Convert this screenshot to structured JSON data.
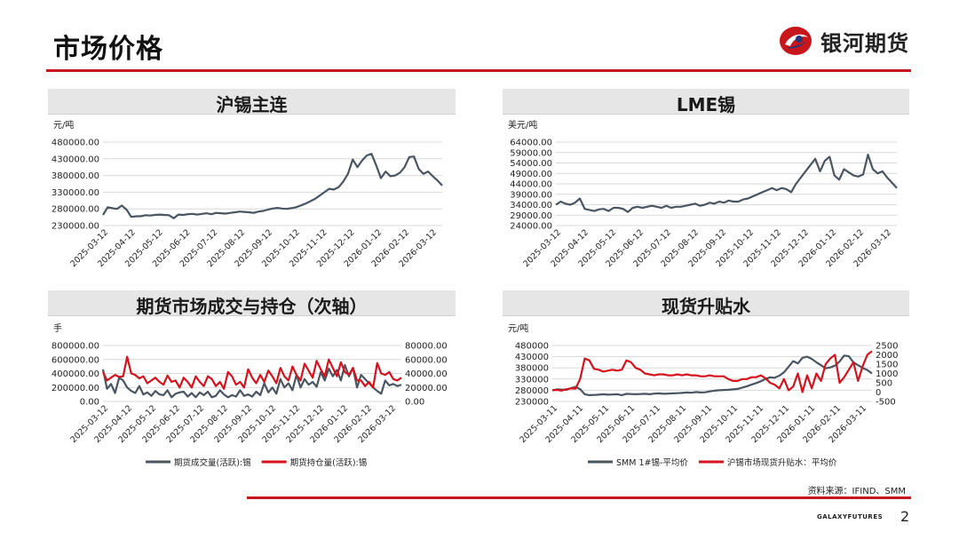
{
  "page": {
    "title": "市场价格",
    "brand": "银河期货",
    "source": "资料来源：IFIND、SMM",
    "footer_brand": "GALAXYFUTURES",
    "page_number": "2"
  },
  "colors": {
    "accent": "#c8161d",
    "series_gray": "#4a5562",
    "series_red": "#d6121c",
    "title_bar": "#e6e6e6"
  },
  "chart_data": [
    {
      "id": "shfe",
      "type": "line",
      "title": "沪锡主连",
      "unit": "元/吨",
      "ylim": [
        230000,
        480000
      ],
      "yticks": [
        "480000.00",
        "430000.00",
        "380000.00",
        "330000.00",
        "280000.00",
        "230000.00"
      ],
      "ytick_values": [
        480000,
        430000,
        380000,
        330000,
        280000,
        230000
      ],
      "xlabels": [
        "2025-03-12",
        "2025-04-12",
        "2025-05-12",
        "2025-06-12",
        "2025-07-12",
        "2025-08-12",
        "2025-09-12",
        "2025-10-12",
        "2025-11-12",
        "2025-12-12",
        "2026-01-12",
        "2026-02-12",
        "2026-03-12"
      ],
      "grid": "horizontal",
      "series": [
        {
          "values": [
            262000,
            285000,
            282000,
            280000,
            290000,
            278000,
            256000,
            258000,
            258000,
            261000,
            260000,
            262000,
            263000,
            262000,
            261000,
            252000,
            263000,
            262000,
            264000,
            265000,
            263000,
            265000,
            267000,
            264000,
            268000,
            267000,
            266000,
            268000,
            270000,
            272000,
            271000,
            270000,
            268000,
            272000,
            274000,
            278000,
            281000,
            283000,
            281000,
            280000,
            282000,
            285000,
            290000,
            296000,
            303000,
            310000,
            320000,
            330000,
            340000,
            338000,
            345000,
            362000,
            385000,
            428000,
            405000,
            425000,
            440000,
            445000,
            410000,
            372000,
            392000,
            378000,
            380000,
            388000,
            405000,
            435000,
            437000,
            400000,
            385000,
            392000,
            378000,
            365000,
            350000
          ]
        }
      ]
    },
    {
      "id": "lme",
      "type": "line",
      "title": "LME锡",
      "unit": "美元/吨",
      "ylim": [
        24000,
        64000
      ],
      "yticks": [
        "64000.00",
        "59000.00",
        "54000.00",
        "49000.00",
        "44000.00",
        "39000.00",
        "34000.00",
        "29000.00",
        "24000.00"
      ],
      "ytick_values": [
        64000,
        59000,
        54000,
        49000,
        44000,
        39000,
        34000,
        29000,
        24000
      ],
      "xlabels": [
        "2025-03-12",
        "2025-04-12",
        "2025-05-12",
        "2025-06-12",
        "2025-07-12",
        "2025-08-12",
        "2025-09-12",
        "2025-10-12",
        "2025-11-12",
        "2025-12-12",
        "2026-01-12",
        "2026-02-12",
        "2026-03-12"
      ],
      "grid": "horizontal",
      "series": [
        {
          "values": [
            34000,
            35500,
            34500,
            34000,
            35000,
            37000,
            32000,
            31500,
            31000,
            31800,
            32000,
            31000,
            32500,
            32500,
            32000,
            30500,
            32500,
            33000,
            32500,
            33000,
            33500,
            33000,
            32500,
            33500,
            32500,
            33000,
            33000,
            33500,
            34000,
            34500,
            33500,
            34000,
            35000,
            34500,
            35500,
            35000,
            36000,
            35500,
            35500,
            36500,
            37000,
            38000,
            39000,
            40000,
            41000,
            42000,
            41000,
            42000,
            41500,
            40000,
            44000,
            47000,
            50000,
            53000,
            56000,
            50000,
            55000,
            57000,
            48000,
            46000,
            51000,
            49500,
            48000,
            47500,
            48500,
            58000,
            51000,
            49000,
            50000,
            47000,
            44500,
            42000
          ]
        }
      ]
    },
    {
      "id": "volume",
      "type": "line",
      "title": "期货市场成交与持仓（次轴）",
      "unit": "手",
      "ylim": [
        0,
        800000
      ],
      "yticks": [
        "800000.00",
        "600000.00",
        "400000.00",
        "200000.00",
        "0.00"
      ],
      "ytick_values": [
        800000,
        600000,
        400000,
        200000,
        0
      ],
      "ylim_right": [
        0,
        80000
      ],
      "yticks_right": [
        "80000.00",
        "60000.00",
        "40000.00",
        "20000.00",
        "0.00"
      ],
      "ytick_values_right": [
        80000,
        60000,
        40000,
        20000,
        0
      ],
      "xlabels": [
        "2025-03-12",
        "2025-04-12",
        "2025-05-12",
        "2025-06-12",
        "2025-07-12",
        "2025-08-12",
        "2025-09-12",
        "2025-10-12",
        "2025-11-12",
        "2025-12-12",
        "2026-01-12",
        "2026-02-12",
        "2026-03-12"
      ],
      "grid": "horizontal",
      "legend": "bottom",
      "series": [
        {
          "name": "期货成交量(活跃):锡",
          "axis": "left",
          "values": [
            460000,
            180000,
            250000,
            120000,
            340000,
            300000,
            200000,
            150000,
            120000,
            220000,
            100000,
            130000,
            80000,
            150000,
            100000,
            90000,
            160000,
            60000,
            110000,
            130000,
            140000,
            70000,
            120000,
            60000,
            130000,
            90000,
            140000,
            60000,
            80000,
            160000,
            100000,
            60000,
            90000,
            70000,
            160000,
            80000,
            100000,
            70000,
            140000,
            90000,
            260000,
            130000,
            200000,
            110000,
            320000,
            200000,
            260000,
            160000,
            380000,
            200000,
            320000,
            240000,
            280000,
            210000,
            420000,
            300000,
            470000,
            360000,
            450000,
            300000,
            520000,
            360000,
            480000,
            200000,
            380000,
            320000,
            260000,
            200000,
            150000,
            110000,
            300000,
            230000,
            250000,
            220000,
            240000
          ]
        },
        {
          "name": "期货持仓量(活跃):锡",
          "axis": "right",
          "values": [
            42000,
            30000,
            34000,
            38000,
            35000,
            36000,
            64000,
            40000,
            38000,
            33000,
            36000,
            26000,
            30000,
            34000,
            28000,
            24000,
            37000,
            28000,
            30000,
            20000,
            34000,
            28000,
            20000,
            36000,
            28000,
            22000,
            36000,
            32000,
            22000,
            28000,
            18000,
            42000,
            36000,
            24000,
            28000,
            20000,
            46000,
            34000,
            26000,
            38000,
            28000,
            44000,
            36000,
            26000,
            48000,
            36000,
            30000,
            50000,
            38000,
            30000,
            54000,
            44000,
            34000,
            58000,
            46000,
            36000,
            60000,
            48000,
            36000,
            56000,
            42000,
            38000,
            48000,
            30000,
            30000,
            22000,
            28000,
            20000,
            55000,
            40000,
            38000,
            42000,
            32000,
            30000,
            34000
          ]
        }
      ]
    },
    {
      "id": "spot",
      "type": "line",
      "title": "现货升贴水",
      "unit": "元/吨",
      "ylim": [
        230000,
        480000
      ],
      "yticks": [
        "480000",
        "430000",
        "380000",
        "330000",
        "280000",
        "230000"
      ],
      "ytick_values": [
        480000,
        430000,
        380000,
        330000,
        280000,
        230000
      ],
      "ylim_right": [
        -500,
        2500
      ],
      "yticks_right": [
        "2500",
        "2000",
        "1500",
        "1000",
        "500",
        "0",
        "-500"
      ],
      "ytick_values_right": [
        2500,
        2000,
        1500,
        1000,
        500,
        0,
        -500
      ],
      "xlabels": [
        "2025-03-11",
        "2025-04-11",
        "2025-05-11",
        "2025-06-11",
        "2025-07-11",
        "2025-08-11",
        "2025-09-11",
        "2025-10-11",
        "2025-11-11",
        "2025-12-11",
        "2026-01-11",
        "2026-02-11",
        "2026-03-11"
      ],
      "grid": "horizontal",
      "legend": "bottom",
      "series": [
        {
          "name": "SMM 1#锡-平均价",
          "axis": "left",
          "values": [
            280000,
            284000,
            283000,
            282000,
            289000,
            295000,
            285000,
            262000,
            258000,
            259000,
            260000,
            262000,
            260000,
            261000,
            262000,
            258000,
            264000,
            263000,
            262000,
            263000,
            264000,
            262000,
            265000,
            266000,
            264000,
            265000,
            266000,
            267000,
            268000,
            270000,
            269000,
            272000,
            270000,
            271000,
            275000,
            278000,
            280000,
            281000,
            282000,
            284000,
            286000,
            292000,
            298000,
            305000,
            312000,
            320000,
            330000,
            338000,
            336000,
            345000,
            360000,
            385000,
            410000,
            400000,
            425000,
            430000,
            420000,
            405000,
            392000,
            378000,
            382000,
            390000,
            408000,
            435000,
            432000,
            405000,
            392000,
            380000,
            370000,
            355000
          ]
        },
        {
          "name": "沪锡市场现货升贴水：平均价",
          "axis": "right",
          "values": [
            100,
            120,
            80,
            150,
            200,
            180,
            700,
            1800,
            1700,
            1250,
            1200,
            1100,
            1150,
            1200,
            1150,
            1200,
            1700,
            1600,
            1300,
            1200,
            1000,
            950,
            900,
            950,
            950,
            900,
            900,
            950,
            900,
            950,
            900,
            900,
            850,
            850,
            900,
            850,
            850,
            850,
            700,
            600,
            600,
            700,
            700,
            800,
            800,
            900,
            750,
            500,
            400,
            200,
            700,
            100,
            300,
            1000,
            0,
            900,
            200,
            1000,
            600,
            1500,
            1800,
            2000,
            500,
            800,
            1200,
            1600,
            600,
            1400,
            2000,
            2200
          ]
        }
      ]
    }
  ]
}
